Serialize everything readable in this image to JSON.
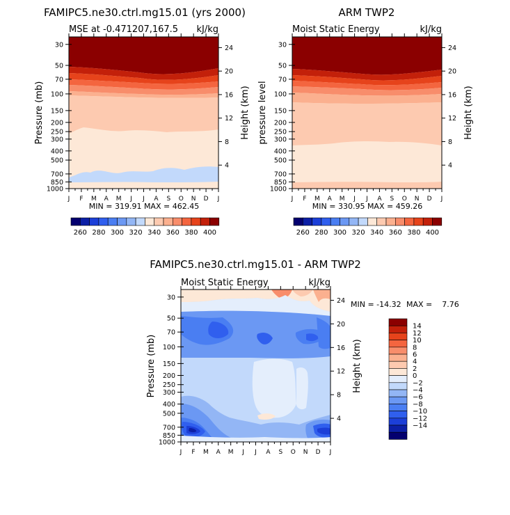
{
  "colors": {
    "abs_scale": [
      "#04006f",
      "#0c1fa6",
      "#1c3fd8",
      "#305fee",
      "#4a7ef2",
      "#6b98f3",
      "#93b6f5",
      "#c2d9fb",
      "#fde8d7",
      "#fdcab0",
      "#fbb08f",
      "#f88d6b",
      "#f4653f",
      "#e6431b",
      "#c3200a",
      "#8b0000"
    ],
    "diff_scale": [
      "#04006f",
      "#0c1fa6",
      "#1c3fd8",
      "#305fee",
      "#4a7ef2",
      "#6b98f3",
      "#93b6f5",
      "#c2d9fb",
      "#e4eefc",
      "#fde8d7",
      "#fdcab0",
      "#fbb08f",
      "#f88d6b",
      "#f4653f",
      "#e6431b",
      "#c3200a",
      "#8b0000"
    ]
  },
  "chart_data": [
    {
      "type": "heatmap",
      "title": "FAMIPC5.ne30.ctrl.mg15.01 (yrs 2000)",
      "subtitle_left": "MSE at -0.471207,167.5",
      "subtitle_right": "kJ/kg",
      "xlabel": "",
      "ylabel": "Pressure (mb)",
      "ylabel_right": "Height (km)",
      "x_ticks": [
        "J",
        "F",
        "M",
        "A",
        "M",
        "J",
        "J",
        "A",
        "S",
        "O",
        "N",
        "D",
        "J"
      ],
      "y_ticks": [
        "30",
        "50",
        "70",
        "100",
        "150",
        "200",
        "250",
        "300",
        "400",
        "500",
        "700",
        "850",
        "1000"
      ],
      "y_ticks_right": [
        "24",
        "20",
        "16",
        "12",
        "8",
        "4"
      ],
      "ylim": [
        1000,
        25
      ],
      "stats": "MIN = 319.91   MAX = 462.45",
      "value_bands": [
        {
          "from_mb": 25,
          "to_mb": 50,
          "value": 410
        },
        {
          "from_mb": 50,
          "to_mb": 62,
          "value": 395
        },
        {
          "from_mb": 62,
          "to_mb": 72,
          "value": 385
        },
        {
          "from_mb": 72,
          "to_mb": 85,
          "value": 375
        },
        {
          "from_mb": 85,
          "to_mb": 100,
          "value": 365
        },
        {
          "from_mb": 100,
          "to_mb": 250,
          "value": 345
        },
        {
          "from_mb": 250,
          "to_mb": 550,
          "value": 335
        },
        {
          "from_mb": 550,
          "to_mb": 850,
          "value": 325
        },
        {
          "from_mb": 850,
          "to_mb": 1000,
          "value": 335
        }
      ]
    },
    {
      "type": "heatmap",
      "title": "ARM TWP2",
      "subtitle_left": "Moist Static Energy",
      "subtitle_right": "kJ/kg",
      "xlabel": "",
      "ylabel": "pressure level",
      "ylabel_right": "Height (km)",
      "x_ticks": [
        "J",
        "F",
        "M",
        "A",
        "M",
        "J",
        "J",
        "A",
        "S",
        "O",
        "N",
        "D",
        "J"
      ],
      "y_ticks": [
        "30",
        "50",
        "70",
        "100",
        "150",
        "200",
        "250",
        "300",
        "400",
        "500",
        "700",
        "850",
        "1000"
      ],
      "y_ticks_right": [
        "24",
        "20",
        "16",
        "12",
        "8",
        "4"
      ],
      "ylim": [
        1000,
        25
      ],
      "stats": "MIN = 330.95   MAX = 459.26",
      "value_bands": [
        {
          "from_mb": 25,
          "to_mb": 50,
          "value": 410
        },
        {
          "from_mb": 50,
          "to_mb": 62,
          "value": 395
        },
        {
          "from_mb": 62,
          "to_mb": 72,
          "value": 385
        },
        {
          "from_mb": 72,
          "to_mb": 85,
          "value": 375
        },
        {
          "from_mb": 85,
          "to_mb": 100,
          "value": 365
        },
        {
          "from_mb": 100,
          "to_mb": 150,
          "value": 355
        },
        {
          "from_mb": 150,
          "to_mb": 380,
          "value": 345
        },
        {
          "from_mb": 380,
          "to_mb": 880,
          "value": 335
        },
        {
          "from_mb": 880,
          "to_mb": 1000,
          "value": 345
        }
      ]
    },
    {
      "type": "heatmap",
      "title": "FAMIPC5.ne30.ctrl.mg15.01 - ARM TWP2",
      "subtitle_left": "Moist Static Energy",
      "subtitle_right": "kJ/kg",
      "xlabel": "",
      "ylabel": "Pressure (mb)",
      "ylabel_right": "Height (km)",
      "x_ticks": [
        "J",
        "F",
        "M",
        "A",
        "M",
        "J",
        "J",
        "A",
        "S",
        "O",
        "N",
        "D",
        "J"
      ],
      "y_ticks": [
        "30",
        "50",
        "70",
        "100",
        "150",
        "200",
        "250",
        "300",
        "400",
        "500",
        "700",
        "850",
        "1000"
      ],
      "y_ticks_right": [
        "24",
        "20",
        "16",
        "12",
        "8",
        "4"
      ],
      "ylim": [
        1000,
        25
      ],
      "stats_min": "MIN = -14.32",
      "stats_max": "MAX =    7.76",
      "value_bands": [
        {
          "from_mb": 25,
          "to_mb": 33,
          "value": 3
        },
        {
          "from_mb": 33,
          "to_mb": 40,
          "value": -1
        },
        {
          "from_mb": 40,
          "to_mb": 120,
          "value": -7
        },
        {
          "from_mb": 120,
          "to_mb": 400,
          "value": -3
        },
        {
          "from_mb": 400,
          "to_mb": 650,
          "value": -5
        },
        {
          "from_mb": 650,
          "to_mb": 1000,
          "value": -9
        }
      ]
    }
  ],
  "legend_abs": [
    "260",
    "280",
    "300",
    "320",
    "340",
    "360",
    "380",
    "400"
  ],
  "legend_diff": [
    "14",
    "12",
    "10",
    "8",
    "6",
    "4",
    "2",
    "0",
    "−2",
    "−4",
    "−6",
    "−8",
    "−10",
    "−12",
    "−14"
  ]
}
